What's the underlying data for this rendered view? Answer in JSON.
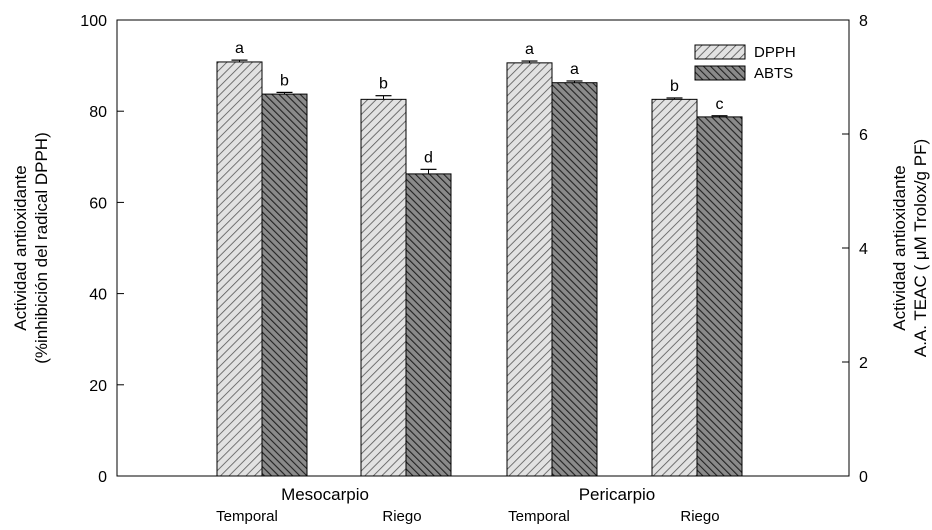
{
  "chart_data": {
    "type": "bar",
    "group_labels": [
      "Mesocarpio",
      "Pericarpio"
    ],
    "categories": [
      "Temporal",
      "Riego",
      "Temporal",
      "Riego"
    ],
    "series": [
      {
        "name": "DPPH",
        "axis": "left",
        "values": [
          90.8,
          82.6,
          90.6,
          82.6
        ],
        "errors": [
          0.4,
          0.8,
          0.4,
          0.3
        ],
        "letters": [
          "a",
          "b",
          "a",
          "b"
        ],
        "pattern": "light-hatch",
        "color": "#cfcfcf"
      },
      {
        "name": "ABTS",
        "axis": "right",
        "values": [
          6.7,
          5.3,
          6.9,
          6.3
        ],
        "errors": [
          0.03,
          0.08,
          0.03,
          0.02
        ],
        "letters": [
          "b",
          "d",
          "a",
          "c"
        ],
        "pattern": "dark-hatch",
        "color": "#6e6e6e"
      }
    ],
    "y_left": {
      "label_line1": "Actividad antioxidante",
      "label_line2": "(%inhibición del radical DPPH)",
      "ylim": [
        0,
        100
      ],
      "ticks": [
        "0",
        "20",
        "40",
        "60",
        "80",
        "100"
      ]
    },
    "y_right": {
      "label_line1": "Actividad antioxidante",
      "label_line2": "A.A. TEAC ( μM Trolox/g PF)",
      "ylim": [
        0,
        8
      ],
      "ticks": [
        "0",
        "2",
        "4",
        "6",
        "8"
      ]
    },
    "legend_position": "top-right",
    "grid": false
  }
}
